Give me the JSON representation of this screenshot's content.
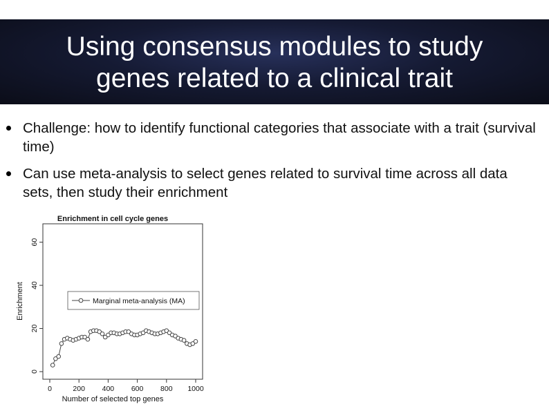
{
  "slide": {
    "title_line1": "Using consensus modules to study",
    "title_line2": "genes related to a clinical trait",
    "bullets": [
      "Challenge: how to identify functional categories that associate with a trait (survival time)",
      "Can use meta-analysis to select genes related to survival time across all data sets, then study their enrichment"
    ]
  },
  "colors": {
    "title_bg": "#151a33",
    "title_text": "#ffffff",
    "body_text": "#111111"
  },
  "chart_data": {
    "type": "line",
    "title": "Enrichment in cell cycle genes",
    "xlabel": "Number of selected top genes",
    "ylabel": "Enrichment",
    "xlim": [
      0,
      1000
    ],
    "ylim": [
      0,
      65
    ],
    "xticks": [
      "0",
      "200",
      "400",
      "600",
      "800",
      "1000"
    ],
    "yticks": [
      "0",
      "20",
      "40",
      "60"
    ],
    "legend": "top-right",
    "series": [
      {
        "name": "Marginal meta-analysis (MA)",
        "marker": "open-circle",
        "x": [
          20,
          40,
          60,
          80,
          100,
          120,
          140,
          160,
          180,
          200,
          220,
          240,
          260,
          280,
          300,
          320,
          340,
          360,
          380,
          400,
          420,
          440,
          460,
          480,
          500,
          520,
          540,
          560,
          580,
          600,
          620,
          640,
          660,
          680,
          700,
          720,
          740,
          760,
          780,
          800,
          820,
          840,
          860,
          880,
          900,
          920,
          940,
          960,
          980,
          1000
        ],
        "y": [
          3,
          6,
          7,
          13,
          15,
          15.5,
          15,
          14.5,
          15,
          15.5,
          16,
          16,
          15,
          18.5,
          19,
          19,
          18.5,
          17.5,
          16,
          17,
          18,
          18,
          17.5,
          17.5,
          18,
          18.5,
          18.5,
          17.5,
          17,
          17,
          17.5,
          18,
          19,
          18.5,
          18,
          17.5,
          17.5,
          18,
          18.5,
          19,
          18,
          17,
          16.5,
          15.5,
          15,
          14.5,
          13,
          12.5,
          13,
          14
        ]
      }
    ]
  }
}
